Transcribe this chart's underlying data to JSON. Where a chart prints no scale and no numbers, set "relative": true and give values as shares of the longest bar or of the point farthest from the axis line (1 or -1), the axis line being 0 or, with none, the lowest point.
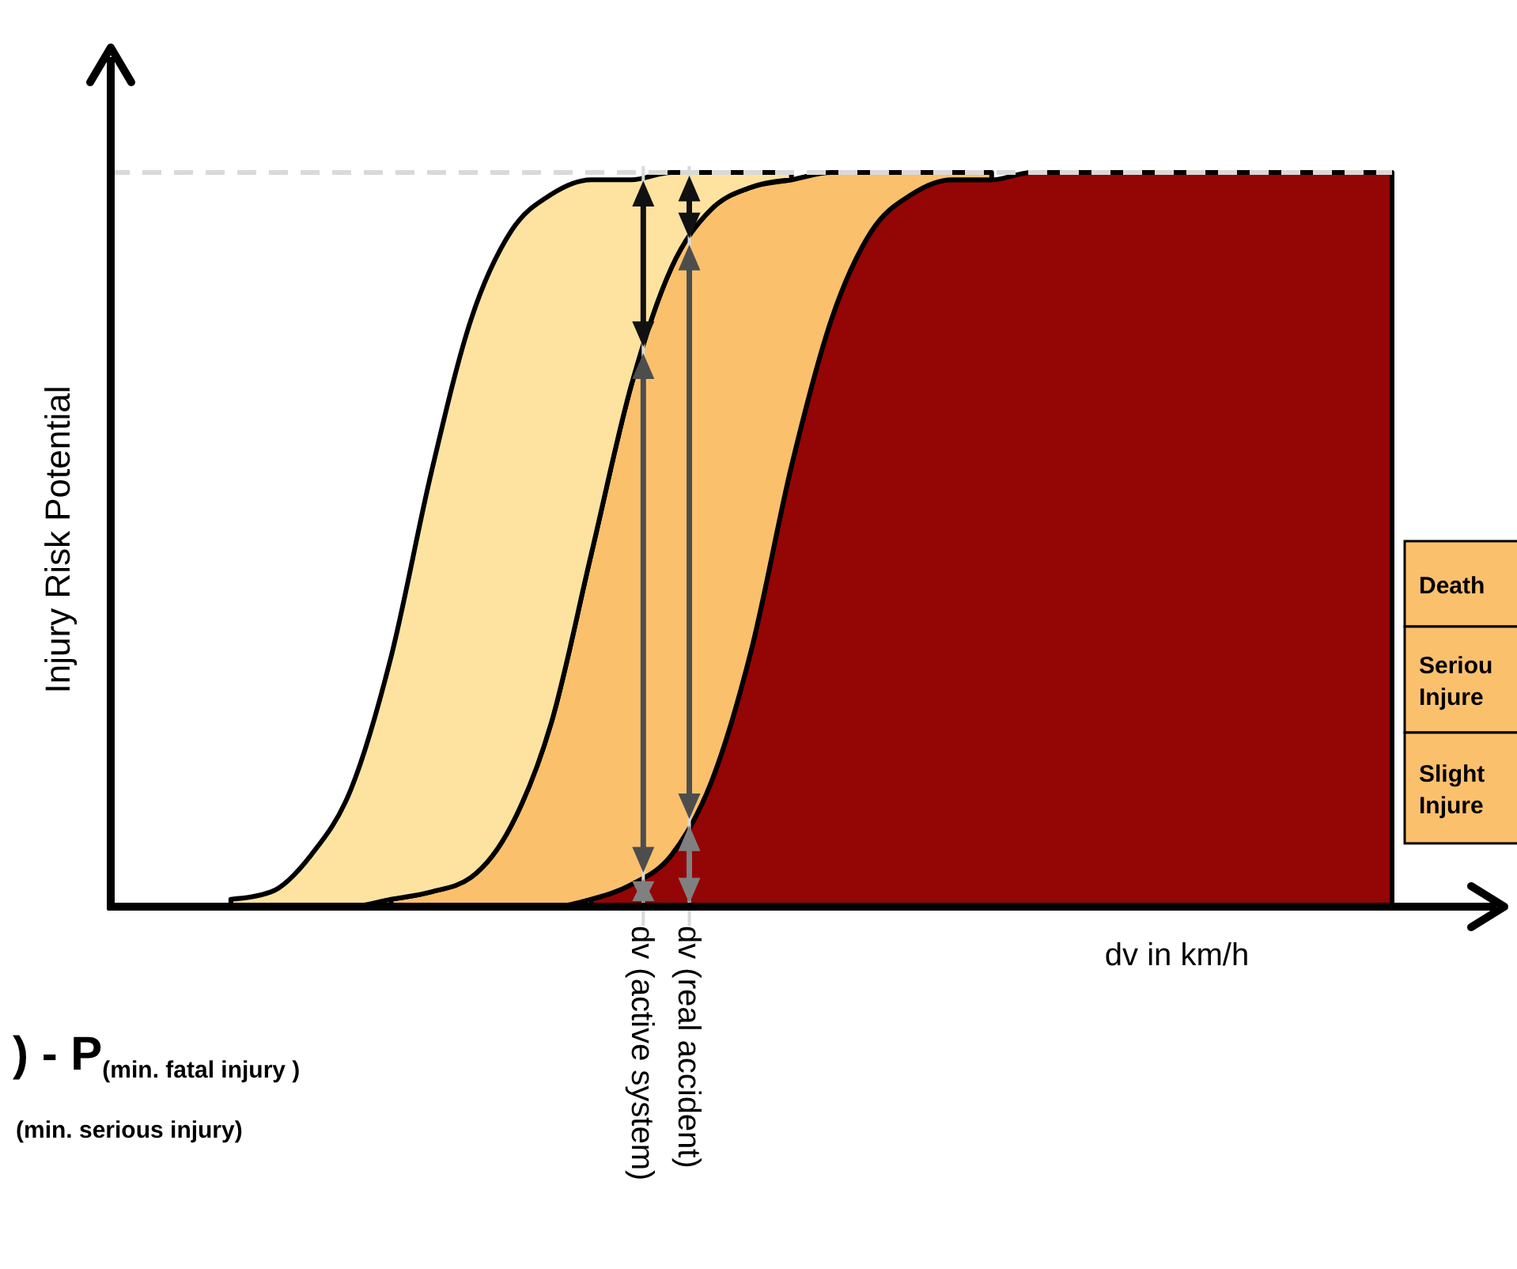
{
  "chart_data": {
    "type": "area",
    "relative": true,
    "stacked": true,
    "xlabel": "dv in km/h",
    "ylabel": "Injury Risk Potential",
    "categories": [
      null,
      null,
      null,
      null,
      null,
      null,
      null,
      null,
      null,
      null,
      null,
      null,
      null,
      null,
      null,
      null,
      null,
      null,
      null,
      null,
      null,
      null,
      null,
      null,
      null,
      null,
      null,
      null,
      null,
      null,
      null,
      null,
      null
    ],
    "series": [
      {
        "color": "#940505",
        "values": [
          null,
          null,
          null,
          null,
          null,
          null,
          null,
          null,
          null,
          null,
          null,
          null,
          0.01,
          0.03,
          0.07,
          0.17,
          0.35,
          0.6,
          0.8,
          0.92,
          0.97,
          0.99,
          0.99,
          1,
          1,
          1,
          1,
          1,
          1,
          1,
          1,
          1,
          1
        ]
      },
      {
        "color": "#fbc06c",
        "values": [
          null,
          null,
          null,
          null,
          null,
          null,
          null,
          0.01,
          0.02,
          0.04,
          0.11,
          0.25,
          0.47,
          0.68,
          0.8,
          0.78,
          0.63,
          0.39,
          0.2,
          0.08,
          0.03,
          0.01,
          0.01,
          null,
          null,
          null,
          null,
          null,
          null,
          null,
          null,
          null,
          null
        ]
      },
      {
        "color": "#fde39f",
        "values": [
          null,
          null,
          null,
          0.01,
          0.02,
          0.07,
          0.16,
          0.33,
          0.57,
          0.76,
          0.81,
          0.72,
          0.51,
          0.28,
          0.13,
          0.05,
          0.02,
          0.01,
          null,
          null,
          null,
          null,
          null,
          null,
          null,
          null,
          null,
          null,
          null,
          null,
          null,
          null,
          null
        ]
      }
    ],
    "ref_lines": [
      {
        "axis": "y",
        "value": 1,
        "color": "#d9d9d9",
        "line_style": "dashed"
      }
    ],
    "annotations": [
      ") - P$_{(min. fatal injury )}$",
      "$_{(min. serious injury)}$",
      "Death",
      "Seriou\nInjure",
      "Slight\nInjure",
      "dv (active system)",
      "dv (real accident)"
    ]
  }
}
